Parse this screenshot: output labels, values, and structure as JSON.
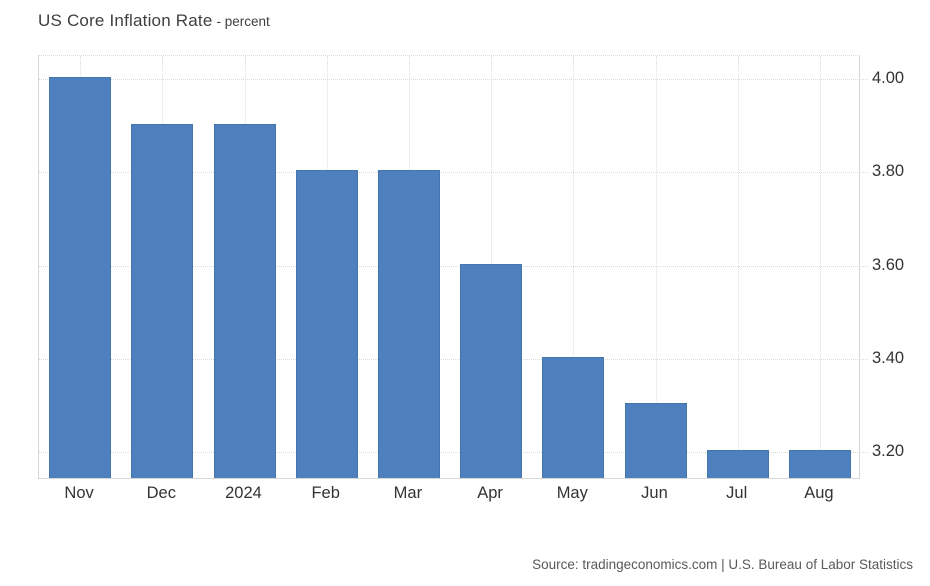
{
  "page": {
    "background": "#ffffff"
  },
  "header": {
    "title": "US Core Inflation Rate",
    "subtitle": "- percent"
  },
  "footer": {
    "source": "Source: tradingeconomics.com | U.S. Bureau of Labor Statistics"
  },
  "chart_data": {
    "type": "bar",
    "title": "US Core Inflation Rate",
    "unit": "percent",
    "categories": [
      "Nov",
      "Dec",
      "2024",
      "Feb",
      "Mar",
      "Apr",
      "May",
      "Jun",
      "Jul",
      "Aug"
    ],
    "values": [
      4.0,
      3.9,
      3.9,
      3.8,
      3.8,
      3.6,
      3.4,
      3.3,
      3.2,
      3.2
    ],
    "y_ticks": [
      4.0,
      3.8,
      3.6,
      3.4,
      3.2
    ],
    "y_tick_labels": [
      "4.00",
      "3.80",
      "3.60",
      "3.40",
      "3.20"
    ],
    "ylim": [
      3.14,
      4.05
    ],
    "grid": true,
    "legend_position": "none",
    "y_axis_side": "right",
    "bar_color": "#4e80bd",
    "bar_border_color": "#4475ab",
    "grid_color": "#dcdcdc",
    "axis_line_color": "#d6d6d6",
    "tick_label_color": "#333333",
    "title_color": "#3f3f3f",
    "source_color": "#595959"
  }
}
